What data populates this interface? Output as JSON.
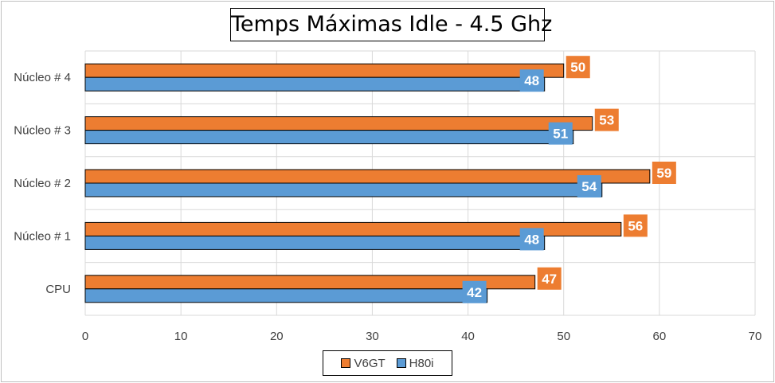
{
  "chart_data": {
    "type": "bar",
    "orientation": "horizontal",
    "title": "Temps Máximas Idle - 4.5 Ghz",
    "categories": [
      "CPU",
      "Núcleo # 1",
      "Núcleo # 2",
      "Núcleo # 3",
      "Núcleo # 4"
    ],
    "series": [
      {
        "name": "V6GT",
        "values": [
          47,
          56,
          59,
          53,
          50
        ],
        "color": "#ED7D31"
      },
      {
        "name": "H80i",
        "values": [
          42,
          48,
          54,
          51,
          48
        ],
        "color": "#5B9BD5"
      }
    ],
    "xlim": [
      0,
      70
    ],
    "xticks": [
      0,
      10,
      20,
      30,
      40,
      50,
      60,
      70
    ],
    "grid": true,
    "legend_position": "bottom",
    "data_labels": true
  }
}
